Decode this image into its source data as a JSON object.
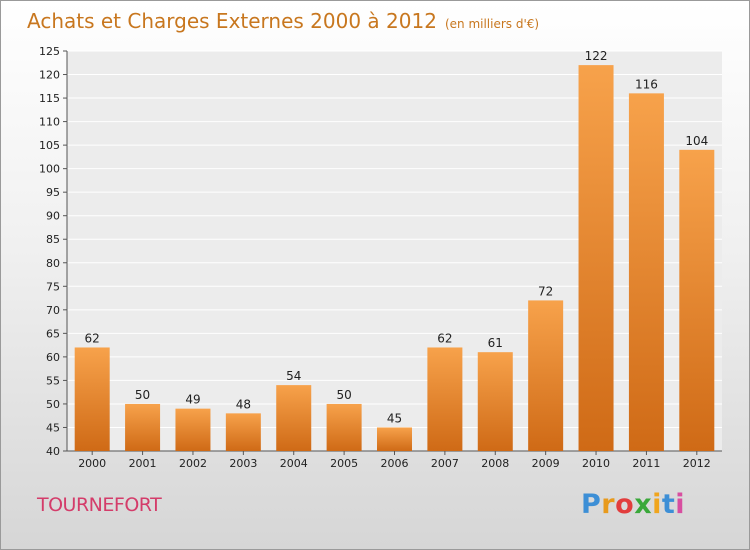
{
  "chart_data": {
    "type": "bar",
    "title": "Achats et Charges Externes 2000 à 2012",
    "subtitle": "(en milliers d'€)",
    "categories": [
      "2000",
      "2001",
      "2002",
      "2003",
      "2004",
      "2005",
      "2006",
      "2007",
      "2008",
      "2009",
      "2010",
      "2011",
      "2012"
    ],
    "values": [
      62,
      50,
      49,
      48,
      54,
      50,
      45,
      62,
      61,
      72,
      122,
      116,
      104
    ],
    "ylim": [
      40,
      125
    ],
    "yticks": [
      40,
      45,
      50,
      55,
      60,
      65,
      70,
      75,
      80,
      85,
      90,
      95,
      100,
      105,
      110,
      115,
      120,
      125
    ],
    "grid": true,
    "bar_color": "#f0922e"
  },
  "footer": {
    "city": "TOURNEFORT",
    "brand_letters": [
      "P",
      "r",
      "o",
      "x",
      "i",
      "t",
      "i"
    ],
    "brand_colors": [
      "#3d8fd6",
      "#e89a1c",
      "#e23d3d",
      "#3aa83a",
      "#f0a51e",
      "#3d8fd6",
      "#d84ea0"
    ]
  }
}
